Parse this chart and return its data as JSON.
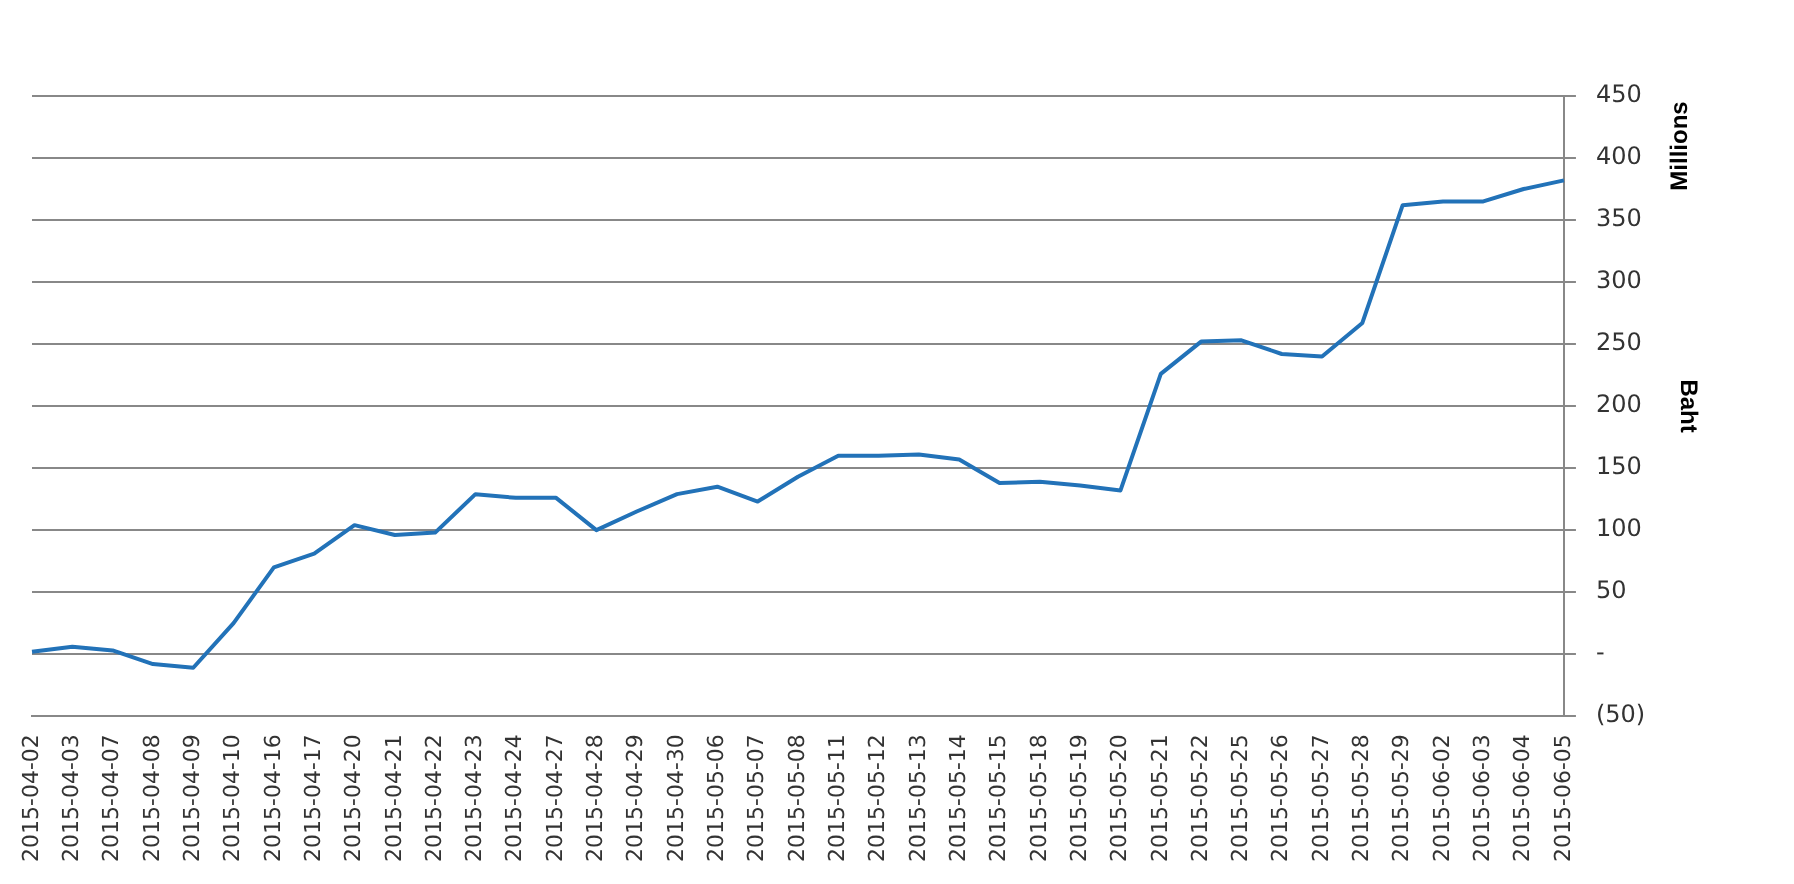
{
  "chart_data": {
    "type": "line",
    "ylabel": "Baht",
    "annotations": [
      "Millions"
    ],
    "categories": [
      "2015-04-02",
      "2015-04-03",
      "2015-04-07",
      "2015-04-08",
      "2015-04-09",
      "2015-04-10",
      "2015-04-16",
      "2015-04-17",
      "2015-04-20",
      "2015-04-21",
      "2015-04-22",
      "2015-04-23",
      "2015-04-24",
      "2015-04-27",
      "2015-04-28",
      "2015-04-29",
      "2015-04-30",
      "2015-05-06",
      "2015-05-07",
      "2015-05-08",
      "2015-05-11",
      "2015-05-12",
      "2015-05-13",
      "2015-05-14",
      "2015-05-15",
      "2015-05-18",
      "2015-05-19",
      "2015-05-20",
      "2015-05-21",
      "2015-05-22",
      "2015-05-25",
      "2015-05-26",
      "2015-05-27",
      "2015-05-28",
      "2015-05-29",
      "2015-06-02",
      "2015-06-03",
      "2015-06-04",
      "2015-06-05"
    ],
    "series": [
      {
        "color": "#2272b8",
        "values": [
          2,
          6,
          3,
          -8,
          -11,
          25,
          70,
          81,
          104,
          96,
          98,
          129,
          126,
          126,
          100,
          115,
          129,
          135,
          123,
          143,
          160,
          160,
          161,
          157,
          138,
          139,
          136,
          132,
          226,
          252,
          253,
          242,
          240,
          267,
          362,
          365,
          365,
          375,
          382
        ]
      }
    ],
    "ylim": [
      -50,
      450
    ],
    "yticks": [
      {
        "value": -50,
        "label": "(50)"
      },
      {
        "value": 0,
        "label": "-"
      },
      50,
      100,
      150,
      200,
      250,
      300,
      350,
      400,
      450
    ],
    "grid": "y",
    "legend": false,
    "marker": "none",
    "line_style": "solid"
  }
}
